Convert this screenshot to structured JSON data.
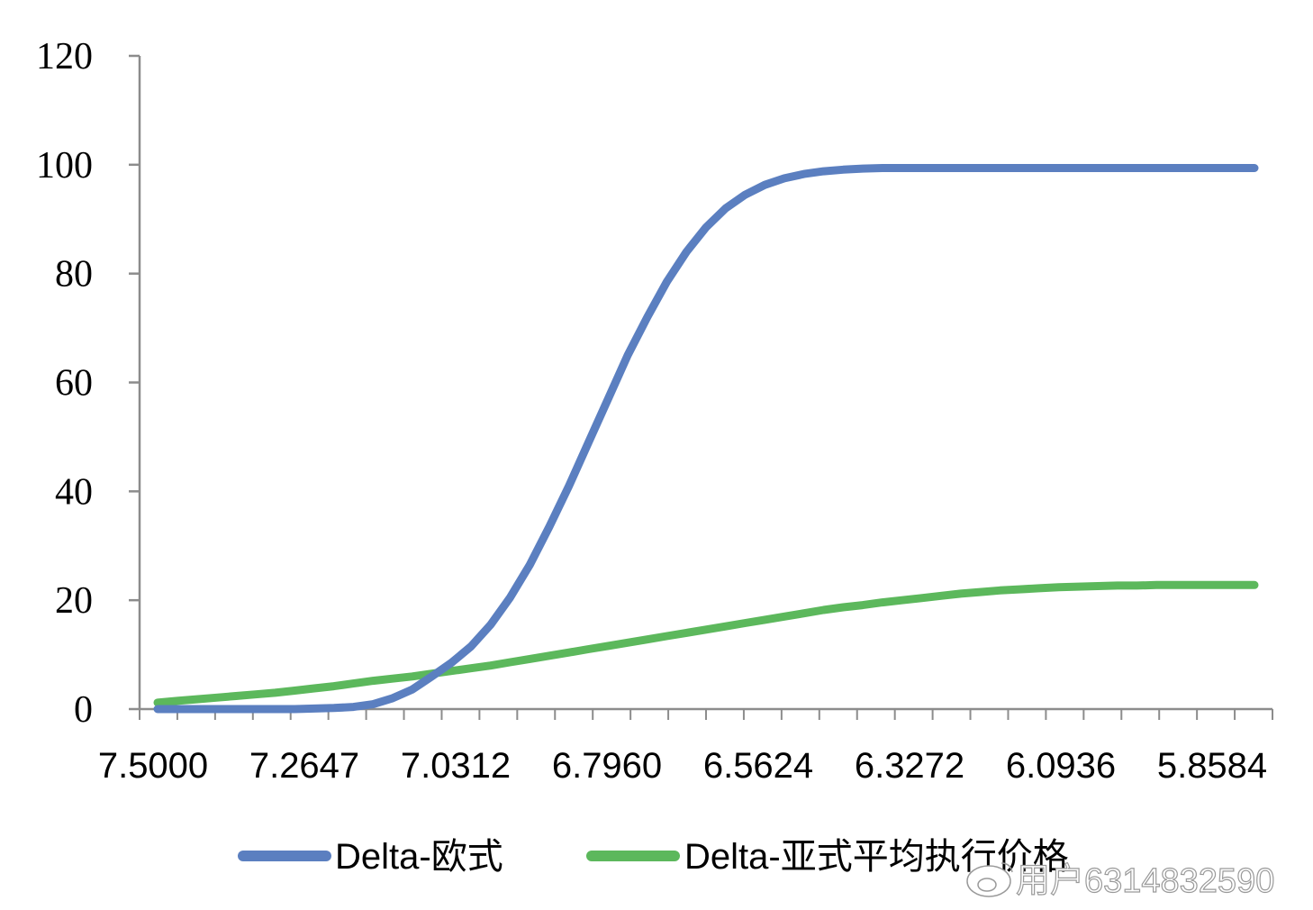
{
  "chart_data": {
    "type": "line",
    "title": "",
    "xlabel": "",
    "ylabel": "",
    "ylim": [
      0,
      120
    ],
    "yticks": [
      "0",
      "20",
      "40",
      "60",
      "80",
      "100",
      "120"
    ],
    "x_tick_labels": [
      "7.5000",
      "7.2647",
      "7.0312",
      "6.7960",
      "6.5624",
      "6.3272",
      "6.0936",
      "5.8584"
    ],
    "categories": [
      "7.5000",
      "7.4706",
      "7.4412",
      "7.4118",
      "7.3824",
      "7.3530",
      "7.3236",
      "7.2942",
      "7.2647",
      "7.2355",
      "7.2063",
      "7.1771",
      "7.1479",
      "7.1187",
      "7.0895",
      "7.0603",
      "7.0312",
      "7.0018",
      "6.9724",
      "6.9430",
      "6.9136",
      "6.8842",
      "6.8548",
      "6.8254",
      "6.7960",
      "6.7668",
      "6.7376",
      "6.7084",
      "6.6792",
      "6.6500",
      "6.6208",
      "6.5916",
      "6.5624",
      "6.5330",
      "6.5036",
      "6.4742",
      "6.4448",
      "6.4154",
      "6.3860",
      "6.3566",
      "6.3272",
      "6.2980",
      "6.2688",
      "6.2396",
      "6.2104",
      "6.1812",
      "6.1520",
      "6.1228",
      "6.0936",
      "6.0642",
      "6.0348",
      "6.0054",
      "5.9760",
      "5.9466",
      "5.9172",
      "5.8878",
      "5.8584"
    ],
    "series": [
      {
        "name": "Delta-欧式",
        "color": "#5b7fc0",
        "values": [
          0,
          0,
          0,
          0,
          0,
          0,
          0,
          0,
          0.1,
          0.2,
          0.4,
          0.9,
          2.0,
          3.6,
          6.0,
          8.5,
          11.5,
          15.5,
          20.5,
          26.5,
          33.5,
          41.0,
          49.0,
          57.0,
          65.0,
          72.0,
          78.5,
          84.0,
          88.5,
          92.0,
          94.5,
          96.3,
          97.5,
          98.3,
          98.8,
          99.1,
          99.3,
          99.4,
          99.4,
          99.4,
          99.4,
          99.4,
          99.4,
          99.4,
          99.4,
          99.4,
          99.4,
          99.4,
          99.4,
          99.4,
          99.4,
          99.4,
          99.4,
          99.4,
          99.4,
          99.4,
          99.4
        ]
      },
      {
        "name": "Delta-亚式平均执行价格",
        "color": "#5cb85c",
        "values": [
          1.2,
          1.5,
          1.8,
          2.1,
          2.4,
          2.7,
          3.0,
          3.4,
          3.8,
          4.2,
          4.7,
          5.2,
          5.6,
          6.0,
          6.5,
          7.0,
          7.5,
          8.0,
          8.6,
          9.2,
          9.8,
          10.4,
          11.0,
          11.6,
          12.2,
          12.8,
          13.4,
          14.0,
          14.6,
          15.2,
          15.8,
          16.4,
          17.0,
          17.6,
          18.2,
          18.7,
          19.1,
          19.6,
          20.0,
          20.4,
          20.8,
          21.2,
          21.5,
          21.8,
          22.0,
          22.2,
          22.4,
          22.5,
          22.6,
          22.7,
          22.7,
          22.8,
          22.8,
          22.8,
          22.8,
          22.8,
          22.8
        ]
      }
    ],
    "grid": false,
    "legend_position": "bottom"
  },
  "watermark": {
    "text": "用户6314832590",
    "icon": "weibo-icon"
  }
}
